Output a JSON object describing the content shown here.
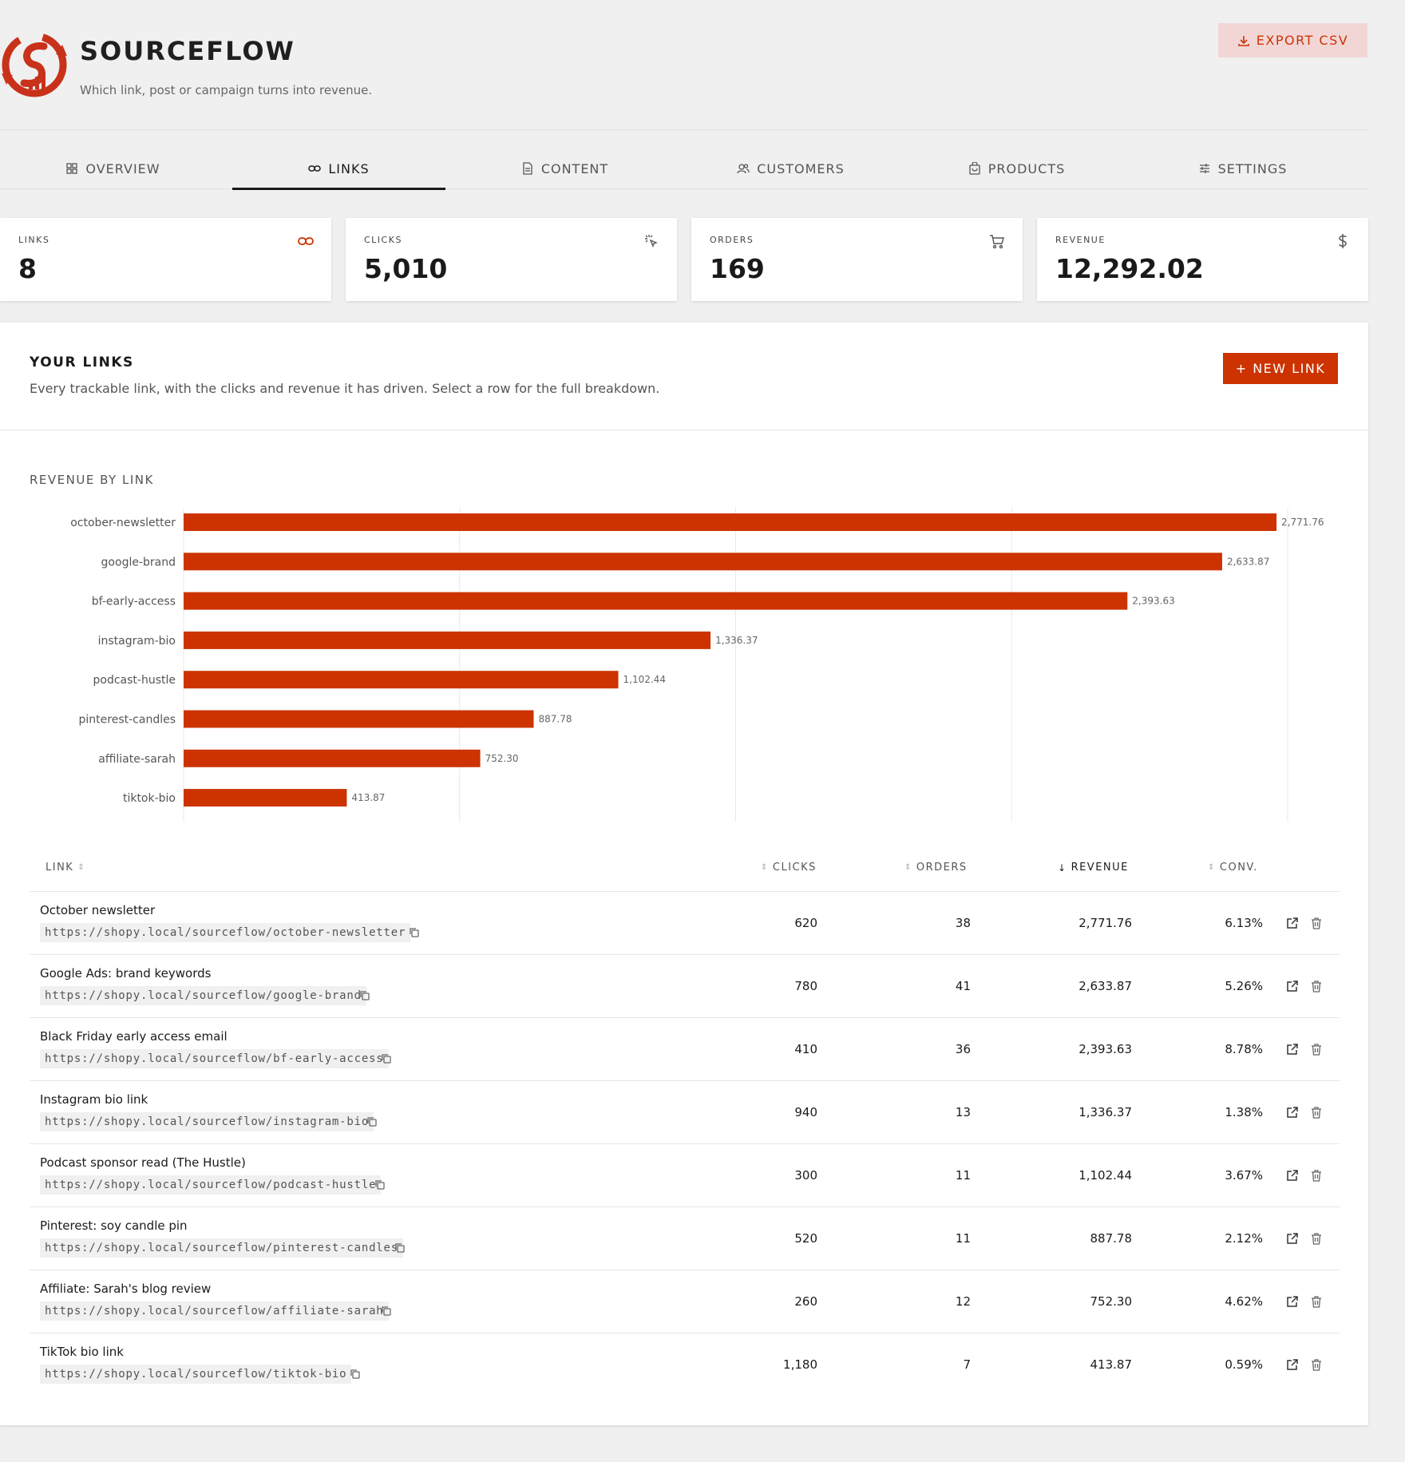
{
  "app": {
    "brand": "SOURCEFLOW",
    "tagline": "Which link, post or campaign turns into revenue.",
    "export_label": "EXPORT CSV"
  },
  "tabs": [
    {
      "label": "OVERVIEW",
      "icon": "grid-icon",
      "active": false
    },
    {
      "label": "LINKS",
      "icon": "link-icon",
      "active": true
    },
    {
      "label": "CONTENT",
      "icon": "document-icon",
      "active": false
    },
    {
      "label": "CUSTOMERS",
      "icon": "users-icon",
      "active": false
    },
    {
      "label": "PRODUCTS",
      "icon": "bag-icon",
      "active": false
    },
    {
      "label": "SETTINGS",
      "icon": "sliders-icon",
      "active": false
    }
  ],
  "kpis": [
    {
      "label": "LINKS",
      "value": "8",
      "icon": "link-icon"
    },
    {
      "label": "CLICKS",
      "value": "5,010",
      "icon": "click-icon"
    },
    {
      "label": "ORDERS",
      "value": "169",
      "icon": "cart-icon"
    },
    {
      "label": "REVENUE",
      "value": "12,292.02",
      "icon": "dollar-icon"
    }
  ],
  "panel": {
    "title": "YOUR LINKS",
    "subtitle": "Every trackable link, with the clicks and revenue it has driven. Select a row for the full breakdown.",
    "new_link_label": "+ NEW LINK",
    "chart_title": "REVENUE BY LINK"
  },
  "colors": {
    "accent": "#cc3300",
    "export_bg": "#f2d6d6"
  },
  "chart_data": {
    "type": "bar",
    "orientation": "horizontal",
    "title": "REVENUE BY LINK",
    "categories": [
      "october-newsletter",
      "google-brand",
      "bf-early-access",
      "instagram-bio",
      "podcast-hustle",
      "pinterest-candles",
      "affiliate-sarah",
      "tiktok-bio"
    ],
    "values": [
      2771.76,
      2633.87,
      2393.63,
      1336.37,
      1102.44,
      887.78,
      752.3,
      413.87
    ],
    "value_labels": [
      "2,771.76",
      "2,633.87",
      "2,393.63",
      "1,336.37",
      "1,102.44",
      "887.78",
      "752.30",
      "413.87"
    ],
    "xlim": [
      0,
      2800
    ],
    "grid": true,
    "color": "#cc3300"
  },
  "table": {
    "headers": {
      "link": "LINK",
      "clicks": "CLICKS",
      "orders": "ORDERS",
      "revenue": "REVENUE",
      "conv": "CONV."
    },
    "sorted_by": "revenue",
    "rows": [
      {
        "name": "October newsletter",
        "url": "https://shopy.local/sourceflow/october-newsletter",
        "clicks": "620",
        "orders": "38",
        "revenue": "2,771.76",
        "conv": "6.13%"
      },
      {
        "name": "Google Ads: brand keywords",
        "url": "https://shopy.local/sourceflow/google-brand",
        "clicks": "780",
        "orders": "41",
        "revenue": "2,633.87",
        "conv": "5.26%"
      },
      {
        "name": "Black Friday early access email",
        "url": "https://shopy.local/sourceflow/bf-early-access",
        "clicks": "410",
        "orders": "36",
        "revenue": "2,393.63",
        "conv": "8.78%"
      },
      {
        "name": "Instagram bio link",
        "url": "https://shopy.local/sourceflow/instagram-bio",
        "clicks": "940",
        "orders": "13",
        "revenue": "1,336.37",
        "conv": "1.38%"
      },
      {
        "name": "Podcast sponsor read (The Hustle)",
        "url": "https://shopy.local/sourceflow/podcast-hustle",
        "clicks": "300",
        "orders": "11",
        "revenue": "1,102.44",
        "conv": "3.67%"
      },
      {
        "name": "Pinterest: soy candle pin",
        "url": "https://shopy.local/sourceflow/pinterest-candles",
        "clicks": "520",
        "orders": "11",
        "revenue": "887.78",
        "conv": "2.12%"
      },
      {
        "name": "Affiliate: Sarah's blog review",
        "url": "https://shopy.local/sourceflow/affiliate-sarah",
        "clicks": "260",
        "orders": "12",
        "revenue": "752.30",
        "conv": "4.62%"
      },
      {
        "name": "TikTok bio link",
        "url": "https://shopy.local/sourceflow/tiktok-bio",
        "clicks": "1,180",
        "orders": "7",
        "revenue": "413.87",
        "conv": "0.59%"
      }
    ]
  }
}
